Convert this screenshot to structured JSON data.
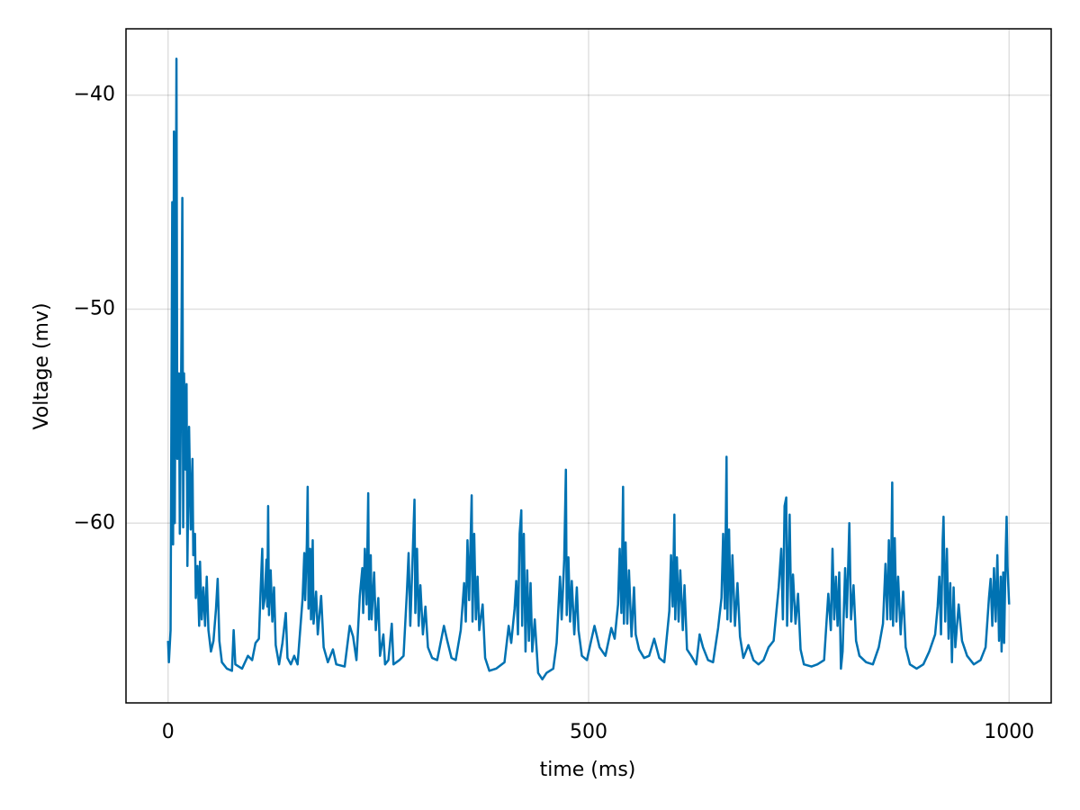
{
  "chart_data": {
    "type": "line",
    "xlabel": "time (ms)",
    "ylabel": "Voltage (mv)",
    "color": "#0072b2",
    "grid": true,
    "xlim": [
      -50,
      1050
    ],
    "ylim": [
      -68.4,
      -36.9
    ],
    "xticks": [
      0,
      500,
      1000
    ],
    "yticks": [
      {
        "value": -40,
        "label": "−40"
      },
      {
        "value": -50,
        "label": "−50"
      },
      {
        "value": -60,
        "label": "−60"
      }
    ],
    "x": [
      0,
      1,
      3,
      5,
      6,
      7,
      8,
      9,
      10,
      11,
      13,
      14,
      16,
      17,
      18,
      19,
      21,
      22,
      23,
      25,
      27,
      29,
      30,
      32,
      33,
      35,
      37,
      38,
      40,
      42,
      44,
      46,
      48,
      51,
      54,
      57,
      59,
      61,
      64,
      70,
      76,
      78,
      80,
      88,
      95,
      100,
      104,
      108,
      110,
      112,
      113,
      115,
      117,
      118,
      119,
      120,
      122,
      124,
      126,
      128,
      132,
      136,
      140,
      142,
      146,
      150,
      154,
      160,
      162,
      163,
      165,
      166,
      167,
      169,
      170,
      172,
      173,
      176,
      178,
      182,
      185,
      190,
      196,
      200,
      210,
      216,
      220,
      224,
      228,
      231,
      232,
      234,
      236,
      238,
      239,
      241,
      242,
      245,
      247,
      250,
      252,
      256,
      258,
      262,
      266,
      268,
      275,
      280,
      284,
      286,
      288,
      290,
      293,
      294,
      296,
      298,
      300,
      303,
      306,
      309,
      314,
      320,
      328,
      332,
      337,
      342,
      348,
      352,
      354,
      356,
      358,
      361,
      362,
      364,
      366,
      368,
      370,
      374,
      377,
      382,
      390,
      400,
      405,
      408,
      412,
      414,
      416,
      418,
      420,
      421,
      423,
      425,
      427,
      429,
      431,
      433,
      436,
      440,
      445,
      450,
      458,
      462,
      466,
      468,
      471,
      473,
      474,
      476,
      478,
      480,
      483,
      486,
      488,
      492,
      498,
      503,
      507,
      513,
      520,
      527,
      531,
      535,
      537,
      539,
      541,
      542,
      544,
      546,
      548,
      551,
      554,
      556,
      560,
      566,
      572,
      578,
      584,
      590,
      596,
      598,
      600,
      602,
      603,
      605,
      607,
      609,
      612,
      614,
      617,
      622,
      628,
      632,
      636,
      642,
      648,
      654,
      658,
      660,
      662,
      664,
      665,
      667,
      669,
      671,
      674,
      677,
      680,
      684,
      690,
      696,
      702,
      708,
      714,
      720,
      726,
      729,
      731,
      733,
      735,
      736,
      739,
      741,
      743,
      746,
      749,
      752,
      756,
      765,
      772,
      780,
      785,
      788,
      790,
      792,
      794,
      796,
      798,
      800,
      802,
      805,
      807,
      810,
      812,
      815,
      818,
      822,
      830,
      838,
      845,
      850,
      853,
      855,
      857,
      859,
      861,
      862,
      864,
      866,
      868,
      871,
      874,
      877,
      882,
      890,
      898,
      905,
      912,
      915,
      917,
      919,
      921,
      922,
      924,
      926,
      928,
      930,
      932,
      934,
      936,
      940,
      944,
      950,
      958,
      966,
      972,
      976,
      978,
      980,
      982,
      984,
      986,
      988,
      990,
      991,
      993,
      994,
      996,
      997,
      998,
      1000
    ],
    "values": [
      -65.5,
      -66.5,
      -65,
      -45,
      -61,
      -41.7,
      -60,
      -50,
      -38.3,
      -57,
      -53,
      -60.5,
      -51,
      -44.8,
      -60.2,
      -53,
      -57.5,
      -53.5,
      -62,
      -55.5,
      -60.3,
      -57,
      -61.5,
      -60.5,
      -63.5,
      -62,
      -64.8,
      -61.8,
      -64.5,
      -63,
      -64.8,
      -62.5,
      -65,
      -66,
      -65.5,
      -64,
      -62.6,
      -65.5,
      -66.5,
      -66.8,
      -66.9,
      -65,
      -66.6,
      -66.8,
      -66.2,
      -66.4,
      -65.6,
      -65.4,
      -63.2,
      -61.2,
      -64,
      -63.5,
      -61.7,
      -63.9,
      -59.2,
      -64.3,
      -62.2,
      -64.6,
      -63,
      -65.7,
      -66.6,
      -65.6,
      -64.2,
      -66.3,
      -66.6,
      -66.2,
      -66.6,
      -63.5,
      -61.4,
      -63.6,
      -61,
      -58.3,
      -64,
      -61.2,
      -64.5,
      -60.8,
      -64.7,
      -63.2,
      -65.2,
      -63.4,
      -65.8,
      -66.5,
      -65.9,
      -66.6,
      -66.7,
      -64.8,
      -65.3,
      -66.4,
      -63.4,
      -62.1,
      -64.2,
      -61.2,
      -63.8,
      -58.6,
      -64.5,
      -61.5,
      -64.5,
      -62.3,
      -65,
      -63.5,
      -66.2,
      -65.2,
      -66.6,
      -66.4,
      -64.7,
      -66.6,
      -66.4,
      -66.2,
      -63.2,
      -61.4,
      -64.8,
      -62.5,
      -58.9,
      -64.2,
      -61.2,
      -64.8,
      -62.9,
      -65.2,
      -63.9,
      -65.8,
      -66.3,
      -66.4,
      -64.8,
      -65.5,
      -66.3,
      -66.4,
      -65,
      -62.8,
      -64.6,
      -60.8,
      -63.6,
      -58.7,
      -64.6,
      -60.5,
      -64.5,
      -62.5,
      -65,
      -63.8,
      -66.3,
      -66.9,
      -66.8,
      -66.5,
      -64.8,
      -65.6,
      -64,
      -62.7,
      -65.2,
      -60.5,
      -59.4,
      -64.8,
      -60.5,
      -66,
      -62.2,
      -65.5,
      -62.8,
      -66,
      -64.5,
      -67,
      -67.3,
      -67,
      -66.8,
      -65.6,
      -62.5,
      -64.5,
      -61.7,
      -57.5,
      -64.3,
      -61.6,
      -64.6,
      -62.7,
      -65.2,
      -63,
      -65,
      -66.2,
      -66.4,
      -65.5,
      -64.8,
      -65.8,
      -66.2,
      -64.9,
      -65.4,
      -63.8,
      -61.2,
      -64.2,
      -58.3,
      -64.7,
      -60.9,
      -64.7,
      -62.2,
      -65.3,
      -63,
      -65.2,
      -65.9,
      -66.3,
      -66.2,
      -65.4,
      -66.3,
      -66.5,
      -64.1,
      -61.5,
      -63.9,
      -59.6,
      -64.5,
      -61.6,
      -64.6,
      -62.2,
      -65,
      -62.9,
      -65.9,
      -66.2,
      -66.6,
      -65.2,
      -65.8,
      -66.4,
      -66.5,
      -64.9,
      -63.5,
      -60.5,
      -64,
      -56.9,
      -64.5,
      -60.3,
      -64.6,
      -61.5,
      -64.8,
      -62.8,
      -65.3,
      -66.3,
      -65.7,
      -66.4,
      -66.6,
      -66.4,
      -65.8,
      -65.5,
      -63,
      -61.2,
      -64.5,
      -59.2,
      -58.8,
      -64.8,
      -59.6,
      -64.6,
      -62.4,
      -64.7,
      -63.3,
      -65.9,
      -66.6,
      -66.7,
      -66.6,
      -66.4,
      -63.3,
      -65,
      -61.2,
      -64.5,
      -62.5,
      -64.8,
      -62.3,
      -66.8,
      -66,
      -62.1,
      -64.4,
      -60,
      -64.5,
      -62.9,
      -65.5,
      -66.2,
      -66.5,
      -66.6,
      -65.8,
      -64.7,
      -61.9,
      -64.5,
      -60.8,
      -64.5,
      -58.1,
      -64.8,
      -60.7,
      -64.6,
      -62.5,
      -65.2,
      -63.2,
      -65.8,
      -66.6,
      -66.8,
      -66.6,
      -66,
      -65.2,
      -63.9,
      -62.5,
      -65.2,
      -60.8,
      -59.7,
      -64.6,
      -61.2,
      -65.4,
      -62.8,
      -66.5,
      -63,
      -65.8,
      -63.8,
      -65.5,
      -66.2,
      -66.6,
      -66.4,
      -65.8,
      -63.5,
      -62.6,
      -64.8,
      -62.1,
      -64.6,
      -61.5,
      -65.5,
      -62.5,
      -66,
      -62.3,
      -65.6,
      -61.2,
      -59.7,
      -62,
      -63.8
    ]
  }
}
